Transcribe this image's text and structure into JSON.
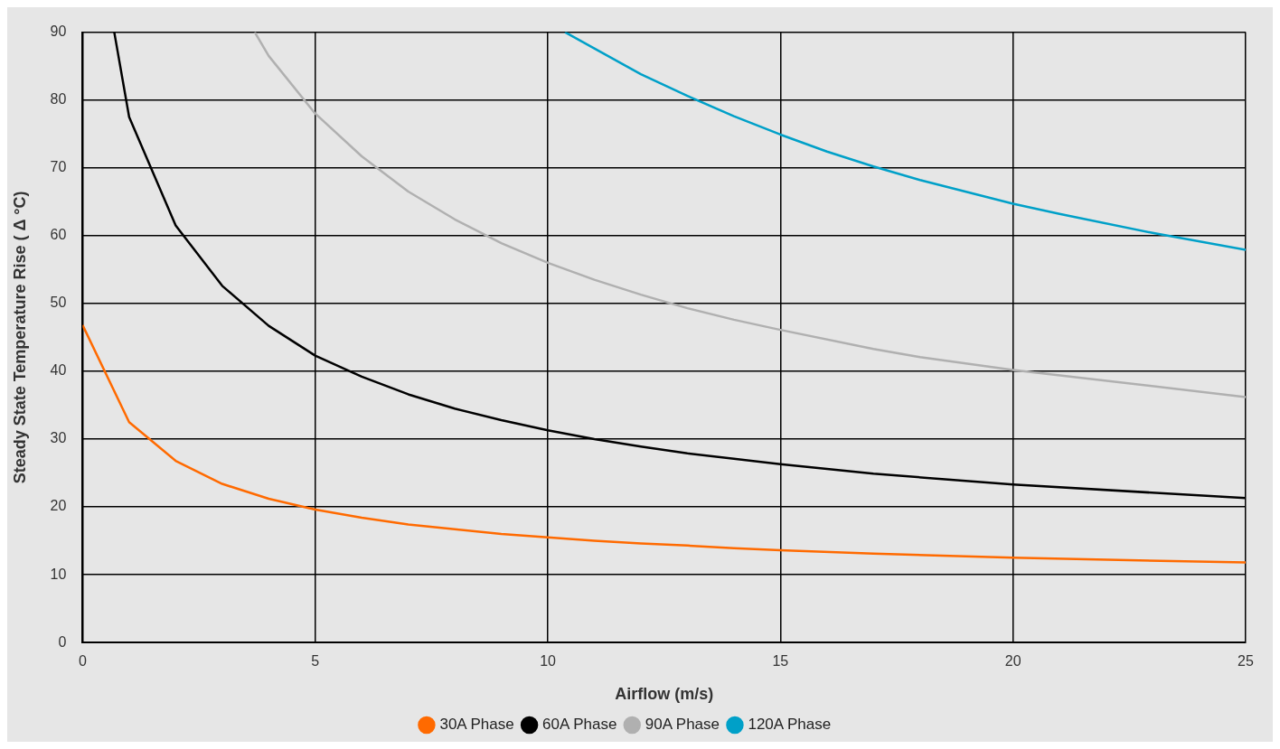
{
  "chart_data": {
    "type": "line",
    "xlabel": "Airflow (m/s)",
    "ylabel": "Steady State Temperature Rise ( Δ °C)",
    "xlim": [
      0,
      25
    ],
    "xticks": [
      0,
      5,
      10,
      15,
      20,
      25
    ],
    "ylim": [
      0,
      90
    ],
    "yticks": [
      0,
      10,
      20,
      30,
      40,
      50,
      60,
      70,
      80,
      90
    ],
    "grid": true,
    "legend": "bottom",
    "marker": "none",
    "line_style": "solid",
    "series": [
      {
        "name": "30A Phase",
        "color": "#ff6a00",
        "x": [
          0,
          1,
          2,
          3,
          4,
          5,
          6,
          7,
          8,
          9,
          10,
          11,
          12,
          13,
          14,
          15,
          17,
          20,
          25
        ],
        "values": [
          46.8,
          32.5,
          26.8,
          23.4,
          21.2,
          19.6,
          18.4,
          17.4,
          16.7,
          16.0,
          15.5,
          15.0,
          14.6,
          14.3,
          13.9,
          13.6,
          13.1,
          12.5,
          11.8
        ]
      },
      {
        "name": "60A Phase",
        "color": "#000000",
        "x": [
          0.68,
          1,
          2,
          3,
          4,
          5,
          6,
          7,
          8,
          9,
          10,
          11,
          12,
          13,
          14,
          15,
          17,
          20,
          25
        ],
        "values": [
          90,
          77.5,
          61.5,
          52.6,
          46.7,
          42.3,
          39.2,
          36.6,
          34.5,
          32.8,
          31.3,
          30.0,
          28.9,
          27.9,
          27.1,
          26.3,
          24.9,
          23.3,
          21.3
        ]
      },
      {
        "name": "90A Phase",
        "color": "#b0b0b0",
        "x": [
          3.7,
          4,
          5,
          6,
          7,
          8,
          9,
          10,
          11,
          12,
          13,
          14,
          15,
          17,
          18,
          20,
          25
        ],
        "values": [
          90,
          86.5,
          78.0,
          71.7,
          66.5,
          62.4,
          58.9,
          56.0,
          53.5,
          51.3,
          49.3,
          47.6,
          46.1,
          43.3,
          42.1,
          40.2,
          36.2
        ]
      },
      {
        "name": "120A Phase",
        "color": "#00a0c8",
        "x": [
          10.37,
          11,
          12,
          13,
          14,
          15,
          16,
          17,
          18,
          20,
          21,
          23,
          25
        ],
        "values": [
          90,
          87.6,
          83.8,
          80.6,
          77.6,
          74.9,
          72.4,
          70.2,
          68.2,
          64.7,
          63.2,
          60.4,
          57.9
        ]
      }
    ]
  }
}
